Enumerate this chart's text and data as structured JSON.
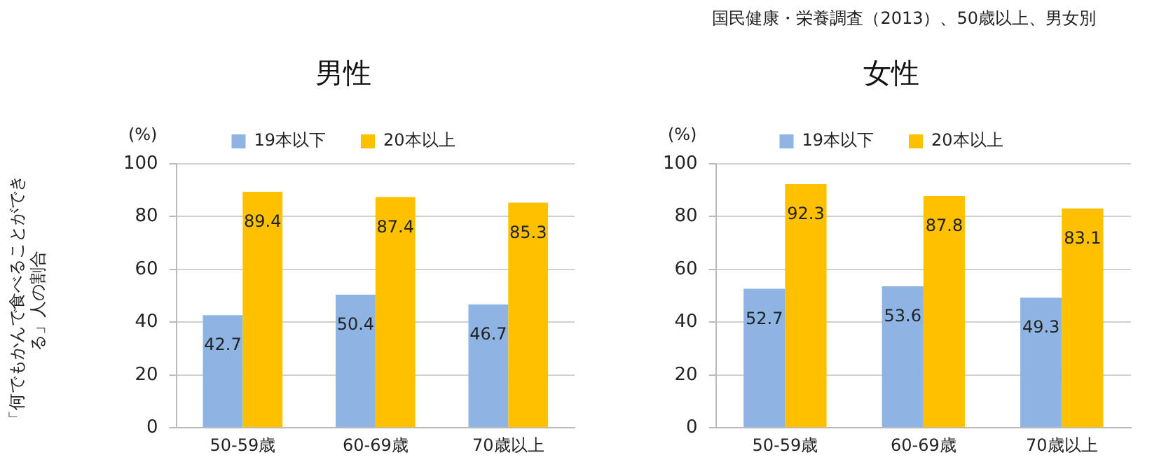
{
  "chart_data": [
    {
      "type": "bar",
      "title": "男性",
      "ylabel": "「何でもかんで食べることができる」人の割合",
      "categories": [
        "50-59歳",
        "60-69歳",
        "70歳以上"
      ],
      "series": [
        {
          "name": "19本以下",
          "color": "#8eb4e3",
          "values": [
            42.7,
            50.4,
            46.7
          ]
        },
        {
          "name": "20本以上",
          "color": "#ffc000",
          "values": [
            89.4,
            87.4,
            85.3
          ]
        }
      ],
      "ylim": [
        0,
        100
      ],
      "yticks": [
        0,
        20,
        40,
        60,
        80,
        100
      ],
      "grid": "y",
      "legend": "top",
      "data_labels": true,
      "annotations": [
        "(%)"
      ]
    },
    {
      "type": "bar",
      "title": "女性",
      "categories": [
        "50-59歳",
        "60-69歳",
        "70歳以上"
      ],
      "series": [
        {
          "name": "19本以下",
          "color": "#8eb4e3",
          "values": [
            52.7,
            53.6,
            49.3
          ]
        },
        {
          "name": "20本以上",
          "color": "#ffc000",
          "values": [
            92.3,
            87.8,
            83.1
          ]
        }
      ],
      "ylim": [
        0,
        100
      ],
      "yticks": [
        0,
        20,
        40,
        60,
        80,
        100
      ],
      "grid": "y",
      "legend": "top",
      "data_labels": true,
      "annotations": [
        "(%)",
        "国民健康・栄養調査（2013）、50歳以上、男女別"
      ]
    }
  ]
}
